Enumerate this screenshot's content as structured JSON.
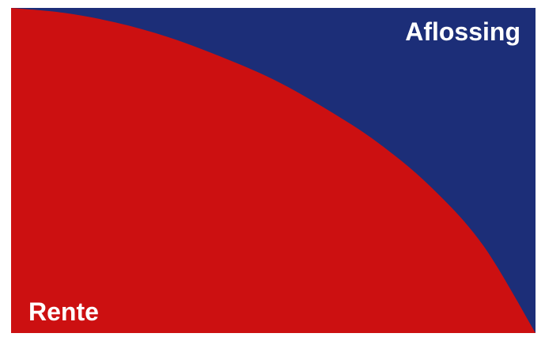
{
  "chart_data": {
    "type": "area",
    "stacked_percent": true,
    "title": "",
    "xlabel": "",
    "ylabel": "",
    "xlim": [
      0,
      1
    ],
    "ylim": [
      0,
      1
    ],
    "grid": false,
    "x": [
      0,
      0.1,
      0.2,
      0.3,
      0.4,
      0.5,
      0.6,
      0.7,
      0.8,
      0.9,
      1.0
    ],
    "series": [
      {
        "name": "Rente",
        "color": "#cc1011",
        "values": [
          1.0,
          0.985,
          0.955,
          0.91,
          0.85,
          0.78,
          0.69,
          0.585,
          0.45,
          0.27,
          0.0
        ]
      },
      {
        "name": "Aflossing",
        "color": "#1c2e78",
        "values": [
          0.0,
          0.015,
          0.045,
          0.09,
          0.15,
          0.22,
          0.31,
          0.415,
          0.55,
          0.73,
          1.0
        ]
      }
    ]
  }
}
